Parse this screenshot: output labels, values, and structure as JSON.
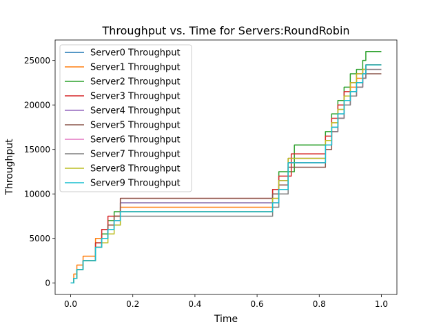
{
  "chart_data": {
    "type": "line",
    "title": "Throughput vs. Time for Servers:RoundRobin",
    "xlabel": "Time",
    "ylabel": "Throughput",
    "xlim": [
      -0.05,
      1.05
    ],
    "ylim": [
      -1300,
      27300
    ],
    "xticks": [
      0.0,
      0.2,
      0.4,
      0.6,
      0.8,
      1.0
    ],
    "xtick_labels": [
      "0.0",
      "0.2",
      "0.4",
      "0.6",
      "0.8",
      "1.0"
    ],
    "yticks": [
      0,
      5000,
      10000,
      15000,
      20000,
      25000
    ],
    "ytick_labels": [
      "0",
      "5000",
      "10000",
      "15000",
      "20000",
      "25000"
    ],
    "grid": false,
    "legend_position": "top-left",
    "series": [
      {
        "name": "Server0 Throughput",
        "color": "#1f77b4",
        "x": [
          0.0,
          0.01,
          0.02,
          0.04,
          0.06,
          0.08,
          0.1,
          0.12,
          0.14,
          0.16,
          0.17,
          0.635,
          0.65,
          0.67,
          0.7,
          0.8,
          0.82,
          0.84,
          0.86,
          0.88,
          0.9,
          0.92,
          0.94,
          0.95,
          1.0
        ],
        "y": [
          0,
          500,
          1500,
          2500,
          2500,
          4000,
          5000,
          6000,
          7000,
          8000,
          8000,
          8000,
          9000,
          10500,
          13500,
          13500,
          15500,
          17500,
          19000,
          20500,
          21500,
          22500,
          23500,
          24500,
          24500
        ]
      },
      {
        "name": "Server1 Throughput",
        "color": "#ff7f0e",
        "x": [
          0.0,
          0.01,
          0.02,
          0.04,
          0.06,
          0.08,
          0.1,
          0.12,
          0.14,
          0.16,
          0.17,
          0.635,
          0.65,
          0.67,
          0.7,
          0.8,
          0.82,
          0.84,
          0.86,
          0.88,
          0.9,
          0.92,
          0.94,
          0.95,
          1.0
        ],
        "y": [
          0,
          1000,
          2000,
          3000,
          3000,
          5000,
          5500,
          6500,
          7500,
          8500,
          8500,
          8500,
          9500,
          11000,
          14000,
          14000,
          16000,
          18000,
          19500,
          21000,
          22000,
          23000,
          24000,
          24500,
          24500
        ]
      },
      {
        "name": "Server2 Throughput",
        "color": "#2ca02c",
        "x": [
          0.0,
          0.01,
          0.02,
          0.04,
          0.06,
          0.08,
          0.1,
          0.12,
          0.14,
          0.16,
          0.17,
          0.635,
          0.65,
          0.67,
          0.72,
          0.8,
          0.82,
          0.84,
          0.86,
          0.88,
          0.9,
          0.92,
          0.94,
          0.95,
          1.0
        ],
        "y": [
          0,
          500,
          1500,
          2500,
          2500,
          4500,
          5500,
          7000,
          8000,
          9000,
          9000,
          9000,
          10500,
          12500,
          15500,
          15500,
          17000,
          19000,
          20500,
          22000,
          23500,
          24000,
          25000,
          26000,
          26000
        ]
      },
      {
        "name": "Server3 Throughput",
        "color": "#d62728",
        "x": [
          0.0,
          0.01,
          0.02,
          0.04,
          0.06,
          0.08,
          0.1,
          0.12,
          0.14,
          0.16,
          0.17,
          0.635,
          0.65,
          0.67,
          0.71,
          0.8,
          0.82,
          0.84,
          0.86,
          0.88,
          0.9,
          0.92,
          0.94,
          0.95,
          1.0
        ],
        "y": [
          0,
          500,
          1500,
          2500,
          2500,
          4500,
          6000,
          7500,
          7500,
          9500,
          9500,
          9500,
          10500,
          12000,
          14500,
          14500,
          16500,
          18500,
          20000,
          21500,
          22500,
          23500,
          24000,
          24500,
          24500
        ]
      },
      {
        "name": "Server4 Throughput",
        "color": "#9467bd",
        "x": [
          0.0,
          0.01,
          0.02,
          0.04,
          0.06,
          0.08,
          0.1,
          0.12,
          0.14,
          0.16,
          0.17,
          0.635,
          0.65,
          0.67,
          0.7,
          0.8,
          0.82,
          0.84,
          0.86,
          0.88,
          0.9,
          0.92,
          0.94,
          0.95,
          1.0
        ],
        "y": [
          0,
          500,
          1500,
          2500,
          2500,
          4000,
          5000,
          6000,
          7000,
          9000,
          9000,
          9000,
          10000,
          11500,
          14000,
          14000,
          15500,
          17000,
          18500,
          20000,
          21000,
          22000,
          23000,
          24500,
          24500
        ]
      },
      {
        "name": "Server5 Throughput",
        "color": "#8c564b",
        "x": [
          0.0,
          0.01,
          0.02,
          0.04,
          0.06,
          0.08,
          0.1,
          0.12,
          0.14,
          0.16,
          0.17,
          0.635,
          0.65,
          0.67,
          0.7,
          0.8,
          0.82,
          0.84,
          0.86,
          0.88,
          0.9,
          0.92,
          0.94,
          0.95,
          1.0
        ],
        "y": [
          0,
          500,
          1500,
          2500,
          2500,
          4000,
          5000,
          6500,
          7500,
          9500,
          9500,
          9500,
          10000,
          11000,
          13000,
          13000,
          15000,
          17000,
          18500,
          20000,
          21000,
          22000,
          23000,
          23500,
          23500
        ]
      },
      {
        "name": "Server6 Throughput",
        "color": "#e377c2",
        "x": [
          0.0,
          0.01,
          0.02,
          0.04,
          0.06,
          0.08,
          0.1,
          0.12,
          0.14,
          0.16,
          0.17,
          0.635,
          0.65,
          0.67,
          0.7,
          0.8,
          0.82,
          0.84,
          0.86,
          0.88,
          0.9,
          0.92,
          0.94,
          0.95,
          1.0
        ],
        "y": [
          0,
          500,
          1500,
          2500,
          2500,
          4000,
          5000,
          6000,
          7000,
          8000,
          8000,
          8000,
          9000,
          10500,
          13500,
          13500,
          15500,
          17000,
          18500,
          20000,
          21000,
          22000,
          23000,
          24000,
          24000
        ]
      },
      {
        "name": "Server7 Throughput",
        "color": "#7f7f7f",
        "x": [
          0.0,
          0.01,
          0.02,
          0.04,
          0.06,
          0.08,
          0.1,
          0.12,
          0.14,
          0.16,
          0.17,
          0.635,
          0.65,
          0.67,
          0.7,
          0.8,
          0.82,
          0.84,
          0.86,
          0.88,
          0.9,
          0.92,
          0.94,
          0.95,
          1.0
        ],
        "y": [
          0,
          500,
          1500,
          2500,
          2500,
          4000,
          5000,
          6000,
          6500,
          7500,
          7500,
          7500,
          8500,
          10000,
          13500,
          13500,
          15500,
          17000,
          18500,
          20000,
          21000,
          22000,
          23000,
          24000,
          24000
        ]
      },
      {
        "name": "Server8 Throughput",
        "color": "#bcbd22",
        "x": [
          0.0,
          0.01,
          0.02,
          0.04,
          0.06,
          0.08,
          0.1,
          0.12,
          0.14,
          0.16,
          0.17,
          0.635,
          0.65,
          0.67,
          0.7,
          0.8,
          0.82,
          0.84,
          0.86,
          0.88,
          0.9,
          0.92,
          0.94,
          0.95,
          1.0
        ],
        "y": [
          0,
          500,
          1500,
          2500,
          2500,
          4000,
          4500,
          5500,
          6500,
          8000,
          8000,
          8000,
          9500,
          11500,
          14000,
          14000,
          16000,
          18000,
          19500,
          21000,
          22500,
          23500,
          24000,
          24500,
          24500
        ]
      },
      {
        "name": "Server9 Throughput",
        "color": "#17becf",
        "x": [
          0.0,
          0.01,
          0.02,
          0.04,
          0.06,
          0.08,
          0.1,
          0.12,
          0.14,
          0.16,
          0.17,
          0.635,
          0.65,
          0.67,
          0.7,
          0.8,
          0.82,
          0.84,
          0.86,
          0.88,
          0.9,
          0.92,
          0.94,
          0.95,
          1.0
        ],
        "y": [
          0,
          500,
          1500,
          2500,
          2500,
          4000,
          5000,
          6000,
          7000,
          8000,
          8000,
          8000,
          9000,
          10500,
          13500,
          13500,
          15500,
          17500,
          19000,
          20500,
          21500,
          22500,
          23500,
          24500,
          24500
        ]
      }
    ]
  }
}
